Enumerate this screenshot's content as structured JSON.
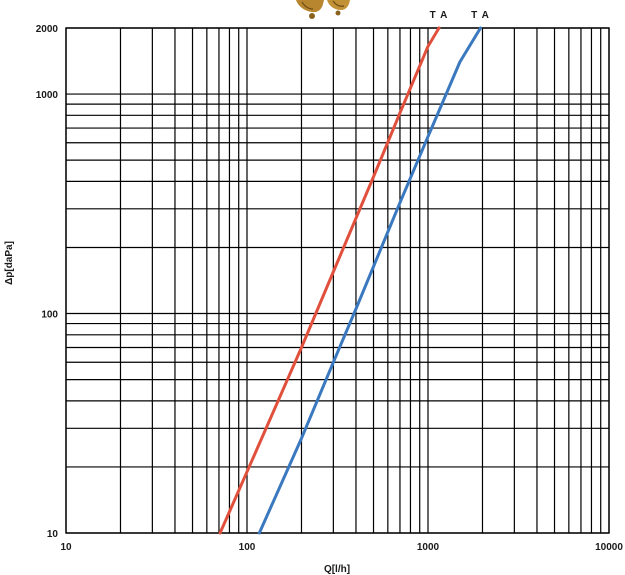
{
  "chart_data": {
    "type": "line",
    "title": "",
    "xlabel": "Q[l/h]",
    "ylabel": "Δp[daPa]",
    "x_scale": "log",
    "y_scale": "log",
    "xlim": [
      10,
      10000
    ],
    "ylim": [
      10,
      2000
    ],
    "grid": true,
    "x_tick_labels": [
      "10",
      "100",
      "1000",
      "10000"
    ],
    "y_tick_labels": [
      "10",
      "100",
      "1000",
      "2000"
    ],
    "series": [
      {
        "name": "T A",
        "color": "#e0503c",
        "x": [
          71,
          100,
          200,
          300,
          500,
          700,
          1000,
          1150
        ],
        "y": [
          10,
          19,
          70,
          155,
          420,
          820,
          1650,
          2000
        ]
      },
      {
        "name": "T A",
        "color": "#3a78bf",
        "x": [
          117,
          200,
          300,
          400,
          700,
          1000,
          1500,
          1950
        ],
        "y": [
          10,
          27,
          60,
          105,
          320,
          640,
          1400,
          2000
        ]
      }
    ]
  },
  "logo": {
    "icon": "valve-product-icon",
    "color": "#b8862e"
  }
}
